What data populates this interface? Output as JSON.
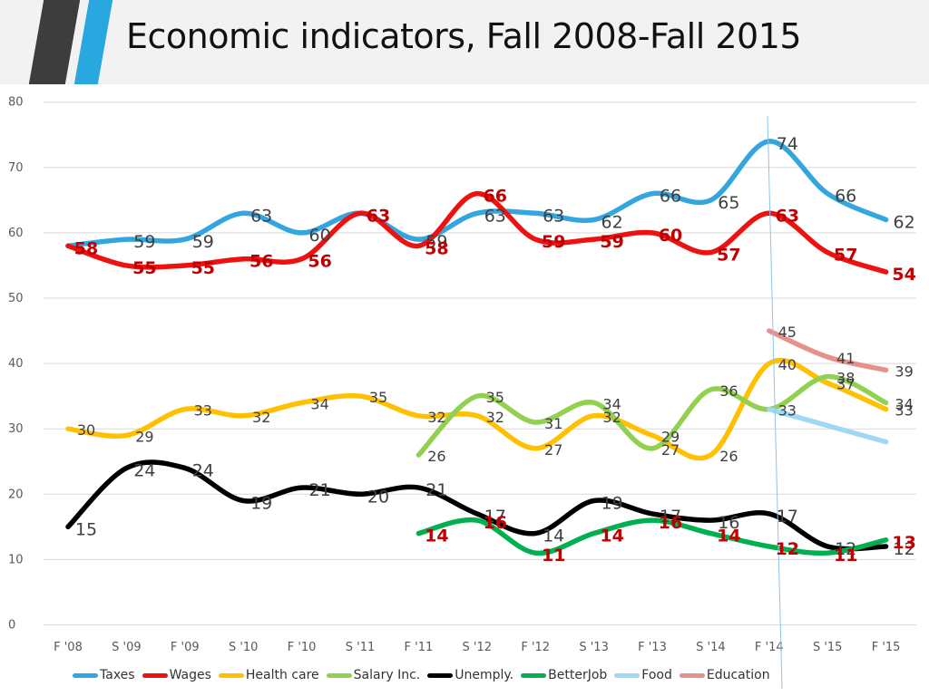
{
  "title": "Economic indicators, Fall 2008-Fall 2015",
  "chart_data": {
    "type": "line",
    "categories": [
      "F '08",
      "S '09",
      "F '09",
      "S '10",
      "F '10",
      "S '11",
      "F '11",
      "S '12",
      "F '12",
      "S '13",
      "F '13",
      "S '14",
      "F '14",
      "S '15",
      "F '15"
    ],
    "ylim": [
      0,
      80
    ],
    "yticks": [
      0,
      10,
      20,
      30,
      40,
      50,
      60,
      70,
      80
    ],
    "grid": true,
    "legend_position": "bottom",
    "series": [
      {
        "name": "Taxes",
        "color": "#33a6e0",
        "values": [
          58,
          59,
          59,
          63,
          60,
          63,
          59,
          63,
          63,
          62,
          66,
          65,
          74,
          66,
          62
        ],
        "labels": [
          "",
          "59",
          "59",
          "63",
          "60",
          "63",
          "59",
          "63",
          "63",
          "62",
          "66",
          "65",
          "74",
          "66",
          "62"
        ],
        "label_color": "#404040"
      },
      {
        "name": "Wages",
        "color": "#ee1111",
        "values": [
          58,
          55,
          55,
          56,
          56,
          63,
          58,
          66,
          59,
          59,
          60,
          57,
          63,
          57,
          54
        ],
        "labels": [
          "58",
          "55",
          "55",
          "56",
          "56",
          "63",
          "58",
          "66",
          "59",
          "59",
          "60",
          "57",
          "63",
          "57",
          "54"
        ],
        "label_color": "#c00000"
      },
      {
        "name": "Health care",
        "color": "#ffc000",
        "values": [
          30,
          29,
          33,
          32,
          34,
          35,
          32,
          32,
          27,
          32,
          29,
          26,
          40,
          37,
          33
        ],
        "labels": [
          "30",
          "29",
          "33",
          "32",
          "34",
          "35",
          "32",
          "32",
          "27",
          "32",
          "29",
          "26",
          "40",
          "37",
          "33"
        ],
        "label_color": "#404040"
      },
      {
        "name": "Salary Inc.",
        "color": "#92d050",
        "values": [
          null,
          null,
          null,
          null,
          null,
          null,
          26,
          35,
          31,
          34,
          27,
          36,
          33,
          38,
          34
        ],
        "labels": [
          "",
          "",
          "",
          "",
          "",
          "",
          "26",
          "35",
          "31",
          "34",
          "27",
          "36",
          "33",
          "38",
          "34"
        ],
        "label_color": "#404040"
      },
      {
        "name": "Unemply.",
        "color": "#000000",
        "values": [
          15,
          24,
          24,
          19,
          21,
          20,
          21,
          17,
          14,
          19,
          17,
          16,
          17,
          12,
          12
        ],
        "labels": [
          "15",
          "24",
          "24",
          "19",
          "21",
          "20",
          "21",
          "17",
          "14",
          "19",
          "17",
          "16",
          "17",
          "12",
          "12"
        ],
        "label_color": "#404040"
      },
      {
        "name": "BetterJob",
        "color": "#00b050",
        "values": [
          null,
          null,
          null,
          null,
          null,
          null,
          14,
          16,
          11,
          14,
          16,
          14,
          12,
          11,
          13
        ],
        "labels": [
          "",
          "",
          "",
          "",
          "",
          "",
          "14",
          "16",
          "11",
          "14",
          "16",
          "14",
          "12",
          "11",
          "13"
        ],
        "label_color": "#c00000"
      },
      {
        "name": "Food",
        "color": "#9fd8f2",
        "values": [
          null,
          null,
          null,
          null,
          null,
          null,
          null,
          null,
          null,
          null,
          null,
          null,
          33,
          null,
          28
        ],
        "labels": [
          "",
          "",
          "",
          "",
          "",
          "",
          "",
          "",
          "",
          "",
          "",
          "",
          "",
          "",
          ""
        ],
        "label_color": "#404040"
      },
      {
        "name": "Education",
        "color": "#e6928a",
        "values": [
          null,
          null,
          null,
          null,
          null,
          null,
          null,
          null,
          null,
          null,
          null,
          null,
          45,
          41,
          39
        ],
        "labels": [
          "",
          "",
          "",
          "",
          "",
          "",
          "",
          "",
          "",
          "",
          "",
          "",
          "45",
          "41",
          "39"
        ],
        "label_color": "#404040"
      }
    ]
  }
}
